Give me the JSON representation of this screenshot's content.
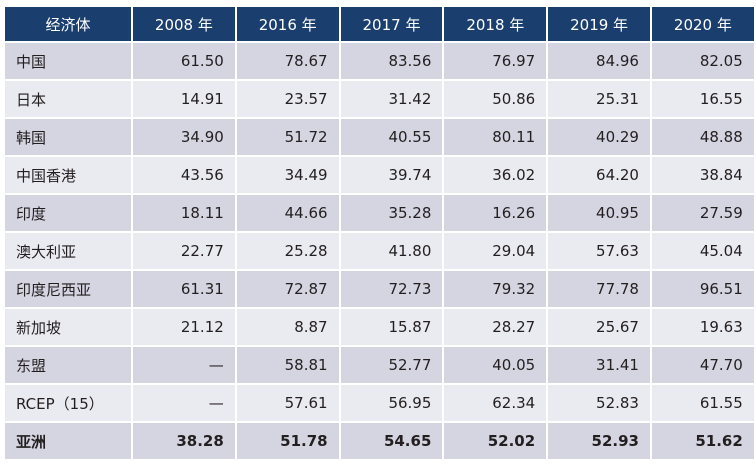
{
  "table": {
    "header": [
      "经济体",
      "2008 年",
      "2016 年",
      "2017 年",
      "2018 年",
      "2019 年",
      "2020 年"
    ],
    "rows": [
      {
        "name": "中国",
        "values": [
          "61.50",
          "78.67",
          "83.56",
          "76.97",
          "84.96",
          "82.05"
        ]
      },
      {
        "name": "日本",
        "values": [
          "14.91",
          "23.57",
          "31.42",
          "50.86",
          "25.31",
          "16.55"
        ]
      },
      {
        "name": "韩国",
        "values": [
          "34.90",
          "51.72",
          "40.55",
          "80.11",
          "40.29",
          "48.88"
        ]
      },
      {
        "name": "中国香港",
        "values": [
          "43.56",
          "34.49",
          "39.74",
          "36.02",
          "64.20",
          "38.84"
        ]
      },
      {
        "name": "印度",
        "values": [
          "18.11",
          "44.66",
          "35.28",
          "16.26",
          "40.95",
          "27.59"
        ]
      },
      {
        "name": "澳大利亚",
        "values": [
          "22.77",
          "25.28",
          "41.80",
          "29.04",
          "57.63",
          "45.04"
        ]
      },
      {
        "name": "印度尼西亚",
        "values": [
          "61.31",
          "72.87",
          "72.73",
          "79.32",
          "77.78",
          "96.51"
        ]
      },
      {
        "name": "新加坡",
        "values": [
          "21.12",
          "8.87",
          "15.87",
          "28.27",
          "25.67",
          "19.63"
        ]
      },
      {
        "name": "东盟",
        "values": [
          "—",
          "58.81",
          "52.77",
          "40.05",
          "31.41",
          "47.70"
        ]
      },
      {
        "name": "RCEP（15）",
        "values": [
          "—",
          "57.61",
          "56.95",
          "62.34",
          "52.83",
          "61.55"
        ]
      },
      {
        "name": "亚洲",
        "values": [
          "38.28",
          "51.78",
          "54.65",
          "52.02",
          "52.93",
          "51.62"
        ]
      }
    ]
  }
}
